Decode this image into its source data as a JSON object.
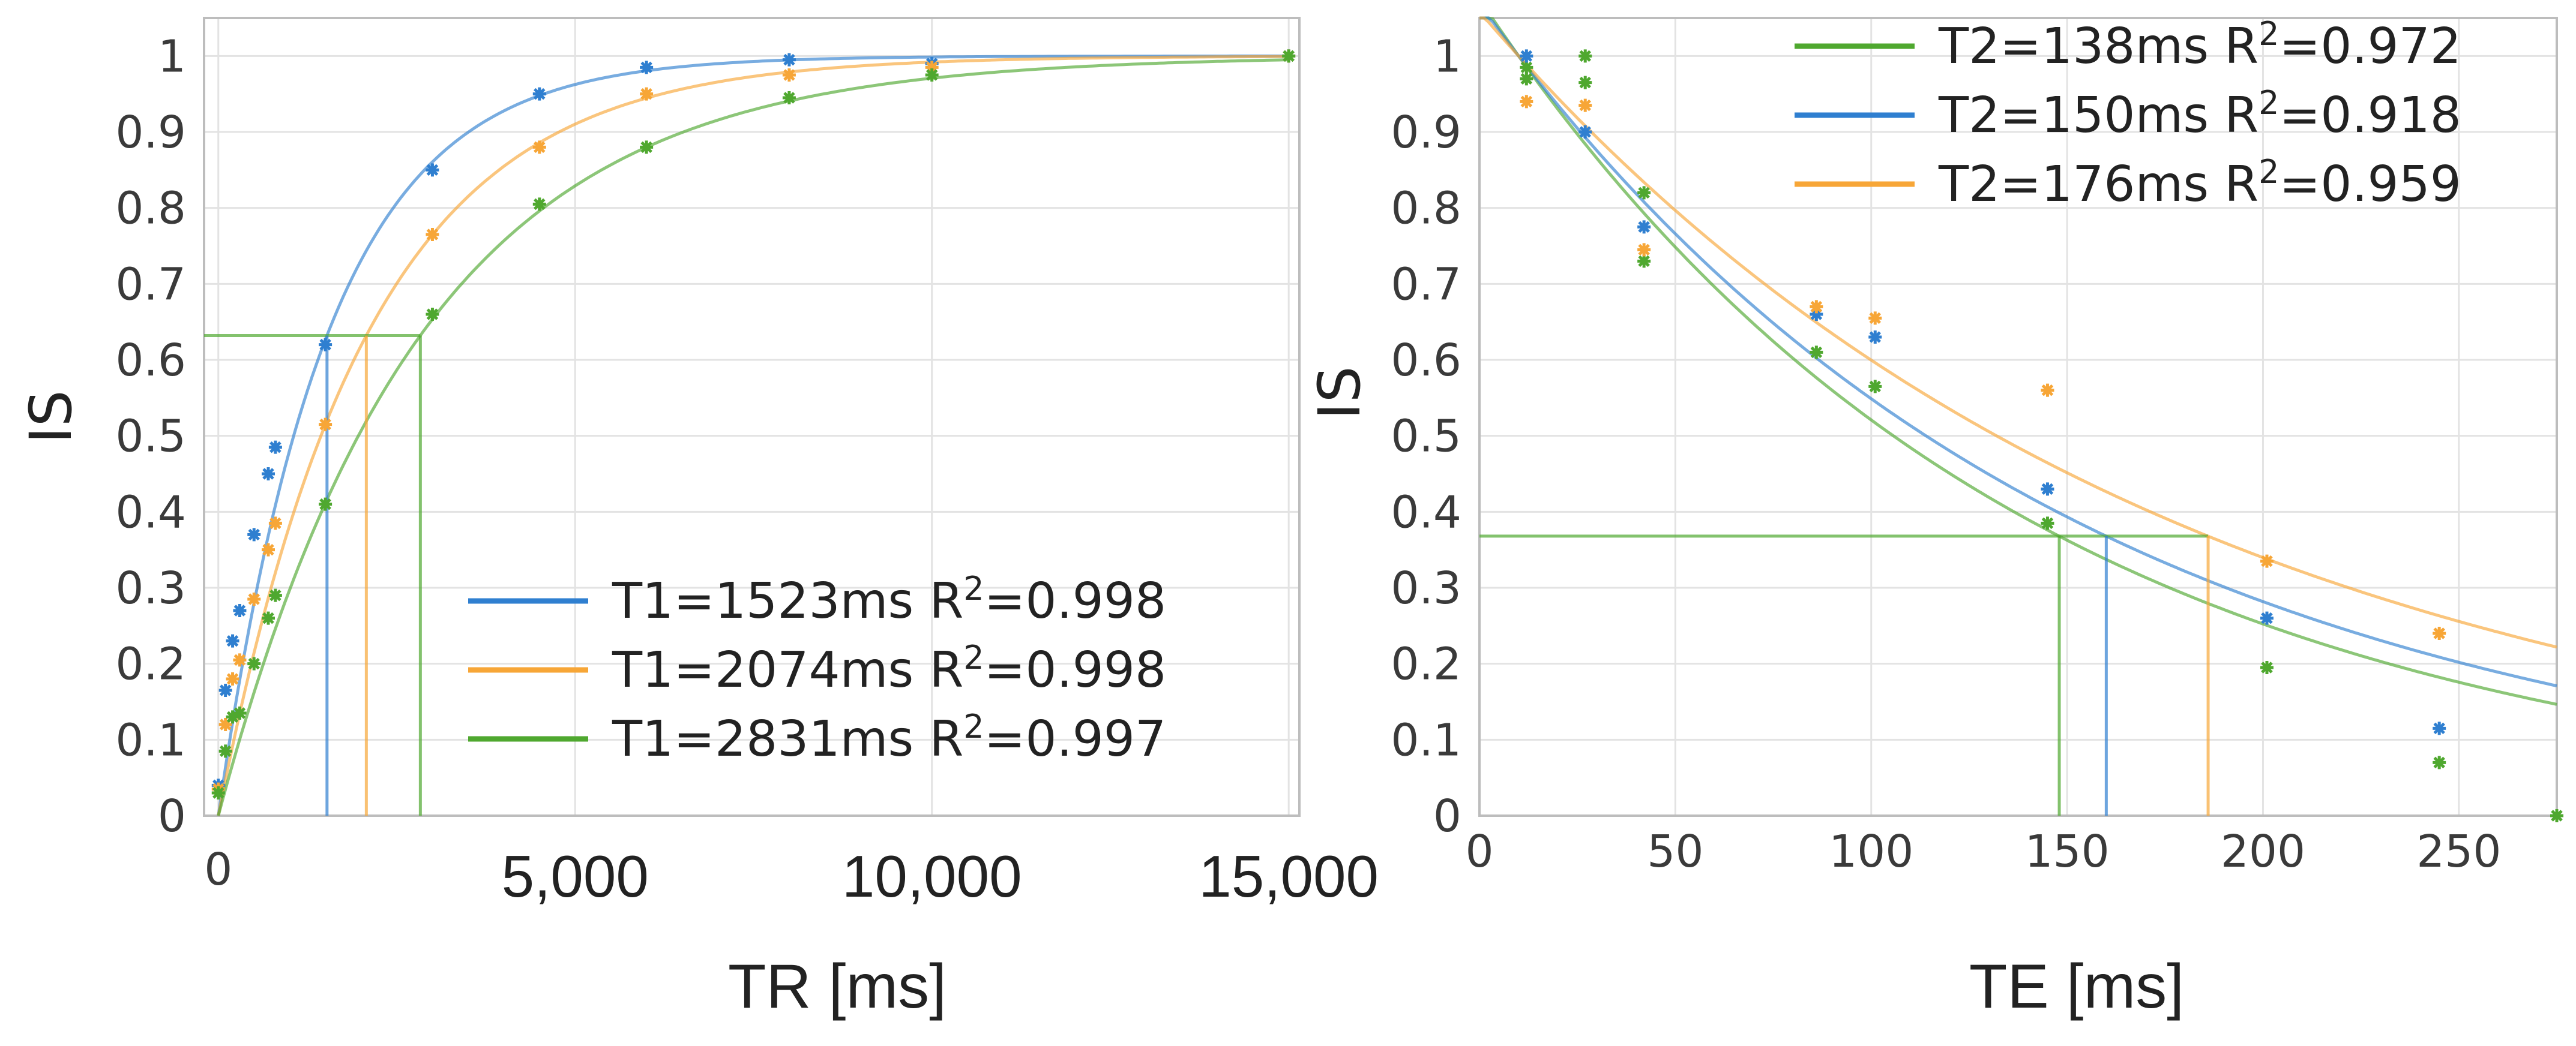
{
  "chart_data": [
    {
      "type": "scatter",
      "title": "",
      "ylabel": "IS",
      "xlabel": "TR [ms]",
      "xlim": [
        -200,
        15150
      ],
      "ylim": [
        0,
        1.05
      ],
      "y_ticks": [
        "0",
        "0.1",
        "0.2",
        "0.3",
        "0.4",
        "0.5",
        "0.6",
        "0.7",
        "0.8",
        "0.9",
        "1"
      ],
      "x_ticks": [
        "0",
        "5,000",
        "10,000",
        "15,000"
      ],
      "grid": true,
      "legend_position": "bottom-right",
      "fit_model": "IS = 1 - exp(-TR/T1)",
      "series": [
        {
          "name": "T1=1523ms",
          "parameter": 1523,
          "r2_label": "R",
          "r2_sup": "2",
          "r2_value": "=0.998",
          "color": "#2f7fd0",
          "x": [
            0,
            100,
            200,
            300,
            500,
            700,
            800,
            1500,
            3000,
            4500,
            6000,
            8000,
            10000,
            15000
          ],
          "y": [
            0.04,
            0.165,
            0.23,
            0.27,
            0.37,
            0.45,
            0.485,
            0.62,
            0.85,
            0.95,
            0.985,
            0.995,
            0.99,
            1.0
          ]
        },
        {
          "name": "T1=2074ms",
          "parameter": 2074,
          "r2_label": "R",
          "r2_sup": "2",
          "r2_value": "=0.998",
          "color": "#f7a637",
          "x": [
            0,
            100,
            200,
            300,
            500,
            700,
            800,
            1500,
            3000,
            4500,
            6000,
            8000,
            10000,
            15000
          ],
          "y": [
            0.035,
            0.12,
            0.18,
            0.205,
            0.285,
            0.35,
            0.385,
            0.515,
            0.765,
            0.88,
            0.95,
            0.975,
            0.985,
            1.0
          ]
        },
        {
          "name": "T1=2831ms",
          "parameter": 2831,
          "r2_label": "R",
          "r2_sup": "2",
          "r2_value": "=0.997",
          "color": "#4fa82f",
          "x": [
            0,
            100,
            200,
            300,
            500,
            700,
            800,
            1500,
            3000,
            4500,
            6000,
            8000,
            10000,
            15000
          ],
          "y": [
            0.03,
            0.085,
            0.13,
            0.135,
            0.2,
            0.26,
            0.29,
            0.41,
            0.66,
            0.805,
            0.88,
            0.945,
            0.975,
            1.0
          ]
        }
      ],
      "guide_level": 0.632
    },
    {
      "type": "scatter",
      "title": "",
      "ylabel": "IS",
      "xlabel": "TE [ms]",
      "xlim": [
        0,
        275
      ],
      "ylim": [
        0,
        1.05
      ],
      "y_ticks": [
        "0",
        "0.1",
        "0.2",
        "0.3",
        "0.4",
        "0.5",
        "0.6",
        "0.7",
        "0.8",
        "0.9",
        "1"
      ],
      "x_ticks": [
        "0",
        "50",
        "100",
        "150",
        "200",
        "250"
      ],
      "grid": true,
      "legend_position": "top-right",
      "fit_model": "IS = exp(-(TE-10)/T2)",
      "series": [
        {
          "name": "T2=138ms",
          "parameter": 138,
          "r2_label": "R",
          "r2_sup": "2",
          "r2_value": "=0.972",
          "color": "#4fa82f",
          "x": [
            12,
            12,
            27,
            27,
            42,
            42,
            86,
            101,
            145,
            201,
            245,
            275
          ],
          "y": [
            0.985,
            0.97,
            1.0,
            0.965,
            0.82,
            0.73,
            0.61,
            0.565,
            0.385,
            0.195,
            0.07,
            0.0
          ]
        },
        {
          "name": "T2=150ms",
          "parameter": 150,
          "r2_label": "R",
          "r2_sup": "2",
          "r2_value": "=0.918",
          "color": "#2f7fd0",
          "x": [
            12,
            27,
            42,
            86,
            101,
            145,
            201,
            245
          ],
          "y": [
            1.0,
            0.9,
            0.775,
            0.66,
            0.63,
            0.43,
            0.26,
            0.115
          ]
        },
        {
          "name": "T2=176ms",
          "parameter": 176,
          "r2_label": "R",
          "r2_sup": "2",
          "r2_value": "=0.959",
          "color": "#f7a637",
          "x": [
            12,
            27,
            42,
            86,
            101,
            145,
            201,
            245
          ],
          "y": [
            0.94,
            0.935,
            0.745,
            0.67,
            0.655,
            0.56,
            0.335,
            0.24
          ]
        }
      ],
      "guide_level": 0.368
    }
  ]
}
